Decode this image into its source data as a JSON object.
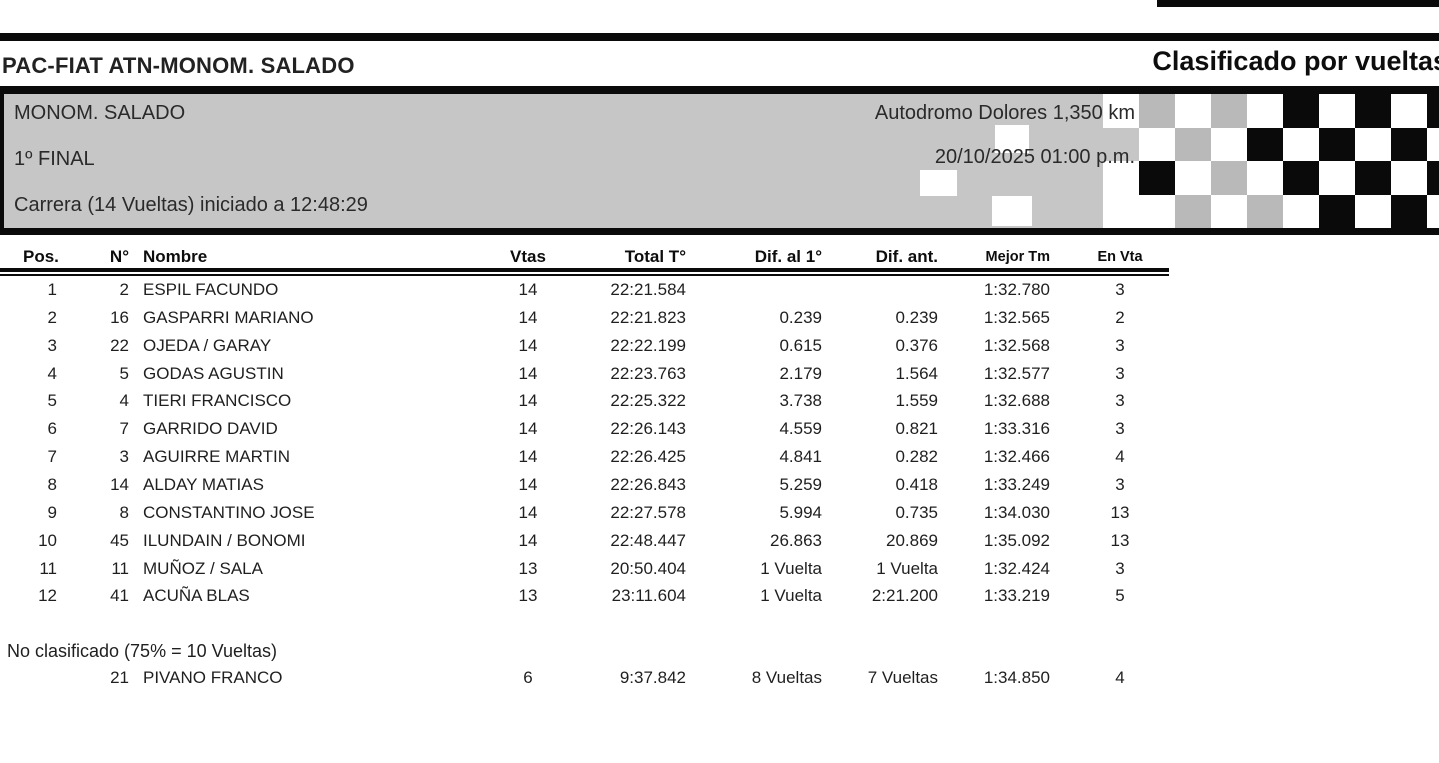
{
  "header": {
    "series_title": "PAC-FIAT ATN-MONOM. SALADO",
    "report_title": "Clasificado por vueltas"
  },
  "event": {
    "category": "MONOM. SALADO",
    "session": "1º FINAL",
    "race_info": "Carrera (14 Vueltas) iniciado a 12:48:29",
    "track": "Autodromo Dolores 1,350 km",
    "datetime": "20/10/2025 01:00 p.m."
  },
  "table": {
    "columns": [
      "Pos.",
      "N°",
      "Nombre",
      "Vtas",
      "Total T°",
      "Dif. al 1°",
      "Dif. ant.",
      "Mejor Tm",
      "En Vta"
    ],
    "rows": [
      [
        "1",
        "2",
        "ESPIL FACUNDO",
        "14",
        "22:21.584",
        "",
        "",
        "1:32.780",
        "3"
      ],
      [
        "2",
        "16",
        "GASPARRI MARIANO",
        "14",
        "22:21.823",
        "0.239",
        "0.239",
        "1:32.565",
        "2"
      ],
      [
        "3",
        "22",
        "OJEDA / GARAY",
        "14",
        "22:22.199",
        "0.615",
        "0.376",
        "1:32.568",
        "3"
      ],
      [
        "4",
        "5",
        "GODAS AGUSTIN",
        "14",
        "22:23.763",
        "2.179",
        "1.564",
        "1:32.577",
        "3"
      ],
      [
        "5",
        "4",
        "TIERI FRANCISCO",
        "14",
        "22:25.322",
        "3.738",
        "1.559",
        "1:32.688",
        "3"
      ],
      [
        "6",
        "7",
        "GARRIDO DAVID",
        "14",
        "22:26.143",
        "4.559",
        "0.821",
        "1:33.316",
        "3"
      ],
      [
        "7",
        "3",
        "AGUIRRE MARTIN",
        "14",
        "22:26.425",
        "4.841",
        "0.282",
        "1:32.466",
        "4"
      ],
      [
        "8",
        "14",
        "ALDAY MATIAS",
        "14",
        "22:26.843",
        "5.259",
        "0.418",
        "1:33.249",
        "3"
      ],
      [
        "9",
        "8",
        "CONSTANTINO JOSE",
        "14",
        "22:27.578",
        "5.994",
        "0.735",
        "1:34.030",
        "13"
      ],
      [
        "10",
        "45",
        "ILUNDAIN / BONOMI",
        "14",
        "22:48.447",
        "26.863",
        "20.869",
        "1:35.092",
        "13"
      ],
      [
        "11",
        "11",
        "MUÑOZ / SALA",
        "13",
        "20:50.404",
        "1 Vuelta",
        "1 Vuelta",
        "1:32.424",
        "3"
      ],
      [
        "12",
        "41",
        "ACUÑA BLAS",
        "13",
        "23:11.604",
        "1 Vuelta",
        "2:21.200",
        "1:33.219",
        "5"
      ]
    ],
    "not_classified_label": "No clasificado (75% = 10 Vueltas)",
    "not_classified_rows": [
      [
        "",
        "21",
        "PIVANO FRANCO",
        "6",
        "9:37.842",
        "8 Vueltas",
        "7 Vueltas",
        "1:34.850",
        "4"
      ]
    ]
  },
  "flag": {
    "grid": [
      "wgwgwkwkwk",
      "twgwkwkwkw",
      "wkwgwkwkwk",
      "wwgwgwkwkw"
    ],
    "extra_white_cells": [
      [
        991,
        31,
        34,
        28
      ],
      [
        916,
        76,
        37,
        26
      ],
      [
        988,
        102,
        40,
        30
      ]
    ],
    "colors": {
      "w": "#ffffff",
      "g": "#b9b9b9",
      "k": "#0a0a0a"
    }
  },
  "colors": {
    "bar_black": "#0a0a0a",
    "header_gray": "#c6c6c6",
    "text": "#1f1f1f"
  }
}
